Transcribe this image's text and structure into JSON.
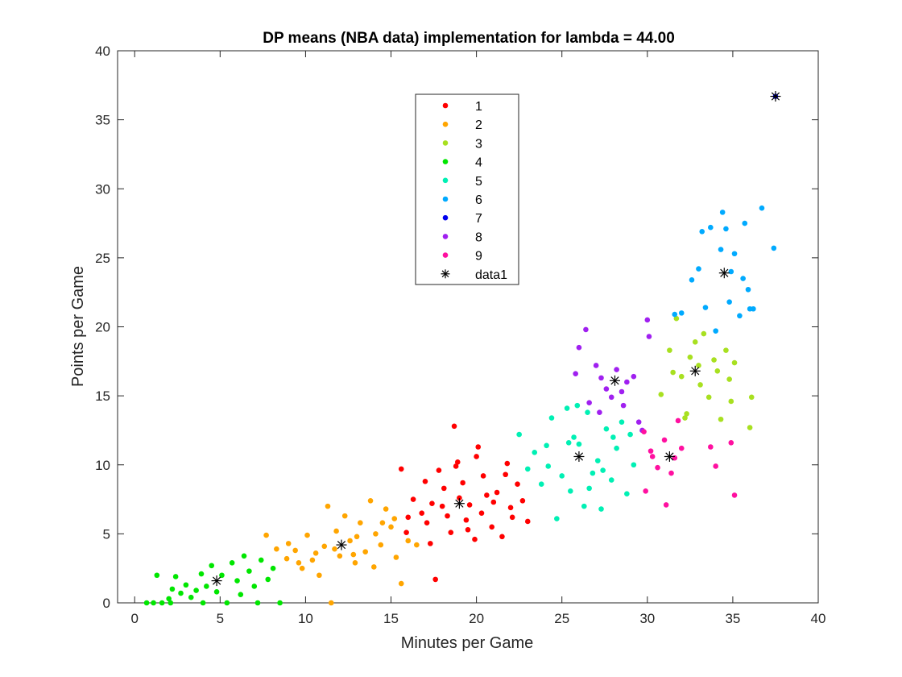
{
  "chart_data": {
    "type": "scatter",
    "title": "DP means (NBA data) implementation for lambda = 44.00",
    "xlabel": "Minutes per Game",
    "ylabel": "Points per Game",
    "xlim": [
      -1,
      40
    ],
    "ylim": [
      0,
      40
    ],
    "xticks": [
      0,
      5,
      10,
      15,
      20,
      25,
      30,
      35,
      40
    ],
    "yticks": [
      0,
      5,
      10,
      15,
      20,
      25,
      30,
      35,
      40
    ],
    "grid": false,
    "legend_placement": "top-center",
    "series": [
      {
        "name": "1",
        "color": "#ff0000",
        "marker": "dot",
        "points": [
          [
            15.6,
            9.7
          ],
          [
            16.3,
            7.5
          ],
          [
            16.8,
            6.5
          ],
          [
            17.1,
            5.8
          ],
          [
            17.4,
            7.2
          ],
          [
            17.6,
            1.7
          ],
          [
            17.8,
            9.6
          ],
          [
            18.1,
            8.3
          ],
          [
            18.3,
            6.3
          ],
          [
            18.5,
            5.1
          ],
          [
            18.7,
            12.8
          ],
          [
            18.9,
            10.2
          ],
          [
            19.2,
            8.7
          ],
          [
            19.4,
            6.0
          ],
          [
            19.6,
            7.1
          ],
          [
            19.9,
            4.6
          ],
          [
            20.1,
            11.3
          ],
          [
            20.4,
            9.2
          ],
          [
            20.6,
            7.8
          ],
          [
            20.9,
            5.5
          ],
          [
            21.2,
            8.0
          ],
          [
            21.5,
            4.8
          ],
          [
            21.8,
            10.1
          ],
          [
            22.0,
            6.9
          ],
          [
            22.4,
            8.6
          ],
          [
            22.7,
            7.4
          ],
          [
            23.0,
            5.9
          ],
          [
            18.0,
            7.0
          ],
          [
            19.0,
            7.6
          ],
          [
            17.0,
            8.8
          ],
          [
            16.0,
            6.2
          ],
          [
            20.3,
            6.5
          ],
          [
            21.0,
            7.3
          ],
          [
            15.9,
            5.1
          ],
          [
            17.3,
            4.3
          ],
          [
            18.8,
            9.9
          ],
          [
            20.0,
            10.6
          ],
          [
            21.7,
            9.3
          ],
          [
            19.5,
            5.3
          ],
          [
            22.1,
            6.2
          ]
        ]
      },
      {
        "name": "2",
        "color": "#ffa500",
        "marker": "dot",
        "points": [
          [
            7.7,
            4.9
          ],
          [
            8.3,
            3.9
          ],
          [
            8.9,
            3.2
          ],
          [
            9.4,
            3.8
          ],
          [
            9.8,
            2.5
          ],
          [
            10.1,
            4.9
          ],
          [
            10.4,
            3.1
          ],
          [
            10.8,
            2.0
          ],
          [
            11.1,
            4.1
          ],
          [
            11.3,
            7.0
          ],
          [
            11.5,
            0.0
          ],
          [
            11.8,
            5.2
          ],
          [
            12.0,
            3.4
          ],
          [
            12.3,
            6.3
          ],
          [
            12.6,
            4.5
          ],
          [
            12.9,
            2.9
          ],
          [
            13.2,
            5.8
          ],
          [
            13.5,
            3.7
          ],
          [
            13.8,
            7.4
          ],
          [
            14.1,
            5.0
          ],
          [
            14.4,
            4.2
          ],
          [
            14.7,
            6.8
          ],
          [
            15.0,
            5.5
          ],
          [
            15.3,
            3.3
          ],
          [
            15.6,
            1.4
          ],
          [
            16.0,
            4.5
          ],
          [
            16.5,
            4.2
          ],
          [
            9.0,
            4.3
          ],
          [
            10.6,
            3.6
          ],
          [
            12.8,
            3.5
          ],
          [
            14.0,
            2.6
          ],
          [
            11.7,
            3.9
          ],
          [
            13.0,
            4.8
          ],
          [
            15.2,
            6.1
          ],
          [
            9.6,
            2.9
          ],
          [
            14.5,
            5.8
          ]
        ]
      },
      {
        "name": "3",
        "color": "#a8e020",
        "marker": "dot",
        "points": [
          [
            30.8,
            15.1
          ],
          [
            31.3,
            18.3
          ],
          [
            31.7,
            20.6
          ],
          [
            32.0,
            16.4
          ],
          [
            32.2,
            13.4
          ],
          [
            32.5,
            17.8
          ],
          [
            32.8,
            18.9
          ],
          [
            33.1,
            15.8
          ],
          [
            33.3,
            19.5
          ],
          [
            33.6,
            14.9
          ],
          [
            33.9,
            17.6
          ],
          [
            34.1,
            16.8
          ],
          [
            34.3,
            13.3
          ],
          [
            34.6,
            18.3
          ],
          [
            34.9,
            14.6
          ],
          [
            35.1,
            17.4
          ],
          [
            36.1,
            14.9
          ],
          [
            36.0,
            12.7
          ],
          [
            32.3,
            13.7
          ],
          [
            33.0,
            17.2
          ],
          [
            31.5,
            16.7
          ],
          [
            34.8,
            16.2
          ]
        ]
      },
      {
        "name": "4",
        "color": "#00e600",
        "marker": "dot",
        "points": [
          [
            0.7,
            0.0
          ],
          [
            1.1,
            0.0
          ],
          [
            1.3,
            2.0
          ],
          [
            1.6,
            0.0
          ],
          [
            2.0,
            0.3
          ],
          [
            2.2,
            1.0
          ],
          [
            2.4,
            1.9
          ],
          [
            2.7,
            0.7
          ],
          [
            3.0,
            1.3
          ],
          [
            3.3,
            0.4
          ],
          [
            3.6,
            0.9
          ],
          [
            3.9,
            2.1
          ],
          [
            4.2,
            1.2
          ],
          [
            4.5,
            2.7
          ],
          [
            4.8,
            0.8
          ],
          [
            5.1,
            2.0
          ],
          [
            5.4,
            0.0
          ],
          [
            5.7,
            2.9
          ],
          [
            6.0,
            1.6
          ],
          [
            6.4,
            3.4
          ],
          [
            6.7,
            2.3
          ],
          [
            7.0,
            1.2
          ],
          [
            7.4,
            3.1
          ],
          [
            7.8,
            1.7
          ],
          [
            8.1,
            2.5
          ],
          [
            8.5,
            0.0
          ],
          [
            7.2,
            0.0
          ],
          [
            6.2,
            0.6
          ],
          [
            2.1,
            0.0
          ],
          [
            4.0,
            0.0
          ]
        ]
      },
      {
        "name": "5",
        "color": "#00f0b4",
        "marker": "dot",
        "points": [
          [
            22.5,
            12.2
          ],
          [
            23.0,
            9.7
          ],
          [
            23.4,
            10.9
          ],
          [
            23.8,
            8.6
          ],
          [
            24.1,
            11.4
          ],
          [
            24.4,
            13.4
          ],
          [
            24.7,
            6.1
          ],
          [
            25.0,
            9.2
          ],
          [
            25.3,
            14.1
          ],
          [
            25.5,
            8.1
          ],
          [
            25.7,
            12.0
          ],
          [
            26.0,
            11.5
          ],
          [
            26.3,
            7.0
          ],
          [
            26.5,
            13.8
          ],
          [
            26.8,
            9.4
          ],
          [
            27.1,
            10.3
          ],
          [
            27.3,
            6.8
          ],
          [
            27.6,
            12.6
          ],
          [
            27.9,
            8.9
          ],
          [
            28.2,
            11.2
          ],
          [
            28.5,
            13.1
          ],
          [
            28.8,
            7.9
          ],
          [
            29.0,
            12.2
          ],
          [
            29.2,
            10.0
          ],
          [
            25.9,
            14.3
          ],
          [
            24.2,
            9.9
          ],
          [
            26.6,
            8.3
          ],
          [
            28.0,
            12.0
          ],
          [
            27.4,
            9.6
          ],
          [
            25.4,
            11.6
          ]
        ]
      },
      {
        "name": "6",
        "color": "#00aaff",
        "marker": "dot",
        "points": [
          [
            31.6,
            20.9
          ],
          [
            32.0,
            21.0
          ],
          [
            32.6,
            23.4
          ],
          [
            33.0,
            24.2
          ],
          [
            33.4,
            21.4
          ],
          [
            33.7,
            27.2
          ],
          [
            34.0,
            19.7
          ],
          [
            34.3,
            25.6
          ],
          [
            34.6,
            27.1
          ],
          [
            34.9,
            24.0
          ],
          [
            35.1,
            25.3
          ],
          [
            35.4,
            20.8
          ],
          [
            35.7,
            27.5
          ],
          [
            35.9,
            22.7
          ],
          [
            36.2,
            21.3
          ],
          [
            36.7,
            28.6
          ],
          [
            37.4,
            25.7
          ],
          [
            34.4,
            28.3
          ],
          [
            33.2,
            26.9
          ],
          [
            35.6,
            23.5
          ],
          [
            34.8,
            21.8
          ],
          [
            36.0,
            21.3
          ]
        ]
      },
      {
        "name": "7",
        "color": "#0000ee",
        "marker": "dot",
        "points": [
          [
            37.5,
            36.7
          ]
        ]
      },
      {
        "name": "8",
        "color": "#a020f0",
        "marker": "dot",
        "points": [
          [
            25.8,
            16.6
          ],
          [
            26.0,
            18.5
          ],
          [
            26.4,
            19.8
          ],
          [
            26.6,
            14.5
          ],
          [
            27.0,
            17.2
          ],
          [
            27.3,
            16.3
          ],
          [
            27.6,
            15.5
          ],
          [
            27.9,
            14.9
          ],
          [
            28.2,
            16.9
          ],
          [
            28.5,
            15.3
          ],
          [
            28.8,
            16.0
          ],
          [
            29.2,
            16.4
          ],
          [
            29.5,
            13.1
          ],
          [
            30.0,
            20.5
          ],
          [
            30.1,
            19.3
          ],
          [
            29.7,
            12.5
          ],
          [
            28.6,
            14.3
          ],
          [
            27.2,
            13.8
          ]
        ]
      },
      {
        "name": "9",
        "color": "#ff10a0",
        "marker": "dot",
        "points": [
          [
            29.8,
            12.4
          ],
          [
            29.9,
            8.1
          ],
          [
            30.3,
            10.6
          ],
          [
            30.6,
            9.8
          ],
          [
            31.0,
            11.8
          ],
          [
            31.1,
            7.1
          ],
          [
            31.4,
            9.4
          ],
          [
            31.6,
            10.5
          ],
          [
            31.8,
            13.2
          ],
          [
            32.0,
            11.2
          ],
          [
            33.7,
            11.3
          ],
          [
            34.0,
            9.9
          ],
          [
            34.9,
            11.6
          ],
          [
            35.1,
            7.8
          ],
          [
            30.2,
            11.0
          ]
        ]
      },
      {
        "name": "data1",
        "color": "#000000",
        "marker": "asterisk",
        "points": [
          [
            19.0,
            7.2
          ],
          [
            12.1,
            4.2
          ],
          [
            32.8,
            16.8
          ],
          [
            4.8,
            1.6
          ],
          [
            26.0,
            10.6
          ],
          [
            34.5,
            23.9
          ],
          [
            37.5,
            36.7
          ],
          [
            28.1,
            16.1
          ],
          [
            31.3,
            10.6
          ]
        ]
      }
    ]
  }
}
